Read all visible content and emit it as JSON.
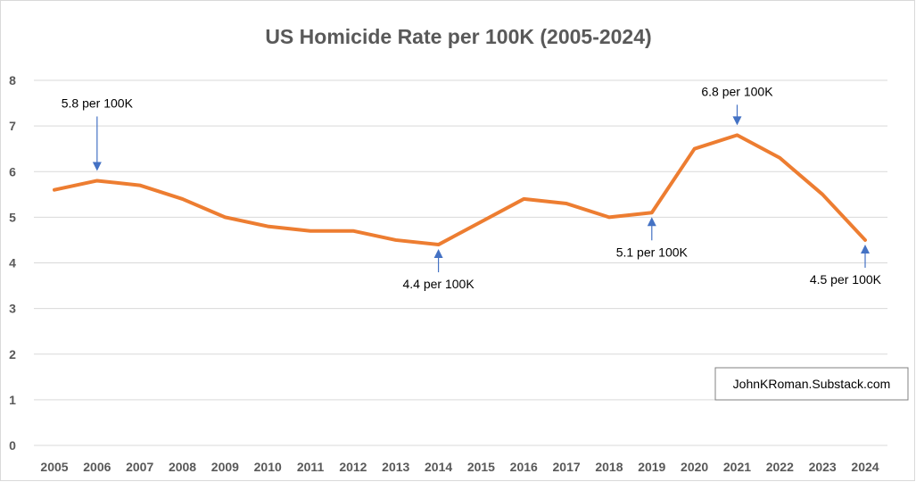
{
  "chart_data": {
    "type": "line",
    "title": "US Homicide Rate per 100K (2005-2024)",
    "xlabel": "",
    "ylabel": "",
    "categories": [
      "2005",
      "2006",
      "2007",
      "2008",
      "2009",
      "2010",
      "2011",
      "2012",
      "2013",
      "2014",
      "2015",
      "2016",
      "2017",
      "2018",
      "2019",
      "2020",
      "2021",
      "2022",
      "2023",
      "2024"
    ],
    "series": [
      {
        "values": [
          5.6,
          5.8,
          5.7,
          5.4,
          5.0,
          4.8,
          4.7,
          4.7,
          4.5,
          4.4,
          4.9,
          5.4,
          5.3,
          5.0,
          5.1,
          6.5,
          6.8,
          6.3,
          5.5,
          4.5
        ]
      }
    ],
    "ylim": [
      0,
      8
    ],
    "yticks": [
      "0",
      "1",
      "2",
      "3",
      "4",
      "5",
      "6",
      "7",
      "8"
    ],
    "grid": true,
    "legend": "none",
    "annotations": [
      {
        "text": "5.8 per 100K",
        "year": "2006",
        "value": 5.8,
        "side": "above"
      },
      {
        "text": "4.4 per 100K",
        "year": "2014",
        "value": 4.4,
        "side": "below"
      },
      {
        "text": "5.1 per 100K",
        "year": "2019",
        "value": 5.1,
        "side": "below"
      },
      {
        "text": "6.8 per 100K",
        "year": "2021",
        "value": 6.8,
        "side": "above"
      },
      {
        "text": "4.5 per 100K",
        "year": "2024",
        "value": 4.5,
        "side": "below"
      }
    ],
    "credit": "JohnKRoman.Substack.com",
    "colors": {
      "line": "#ED7D31",
      "arrow": "#4472C4",
      "grid": "#D9D9D9",
      "text": "#595959"
    }
  }
}
